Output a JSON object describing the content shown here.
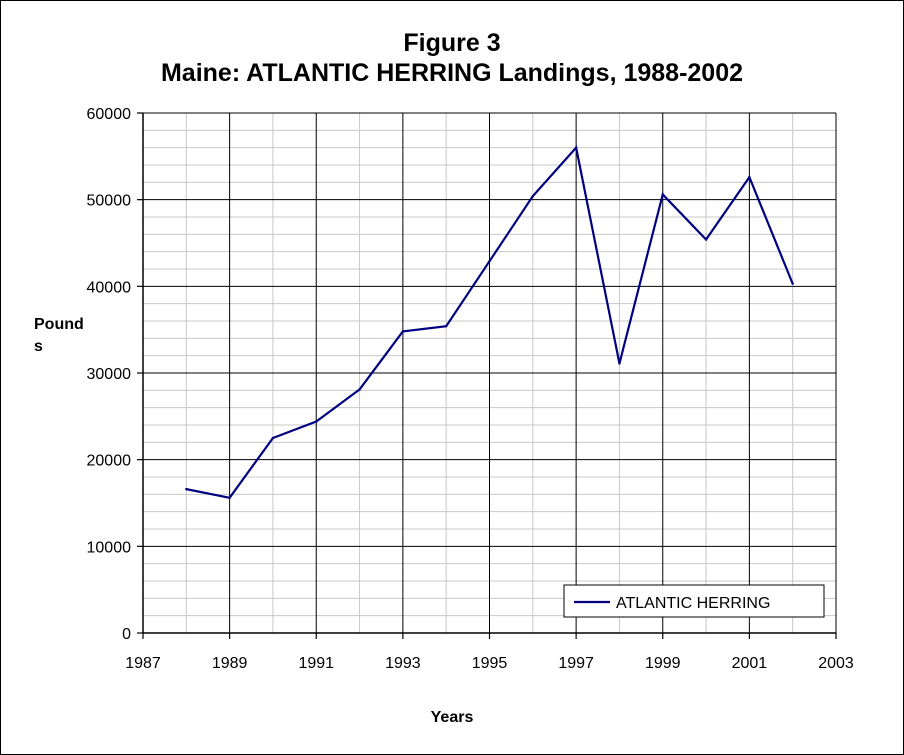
{
  "chart_data": {
    "type": "line",
    "title_line1": "Figure 3",
    "title_line2": "Maine: ATLANTIC HERRING Landings, 1988-2002",
    "xlabel": "Years",
    "ylabel_line1": "Pound",
    "ylabel_line2": "s",
    "xlim": [
      1987,
      2003
    ],
    "ylim": [
      0,
      60000
    ],
    "x_ticks": [
      1987,
      1989,
      1991,
      1993,
      1995,
      1997,
      1999,
      2001,
      2003
    ],
    "y_ticks": [
      0,
      10000,
      20000,
      30000,
      40000,
      50000,
      60000
    ],
    "y_minor_step": 2000,
    "x_minor_step": 1,
    "grid": true,
    "legend_position": "bottom-right",
    "series": [
      {
        "name": "ATLANTIC HERRING",
        "color": "#000080",
        "x": [
          1988,
          1989,
          1990,
          1991,
          1992,
          1993,
          1994,
          1995,
          1996,
          1997,
          1998,
          1999,
          2000,
          2001,
          2002
        ],
        "values": [
          16600,
          15600,
          22500,
          24400,
          28100,
          34800,
          35400,
          42900,
          50400,
          56000,
          31100,
          50600,
          45400,
          52600,
          40300
        ]
      }
    ]
  }
}
